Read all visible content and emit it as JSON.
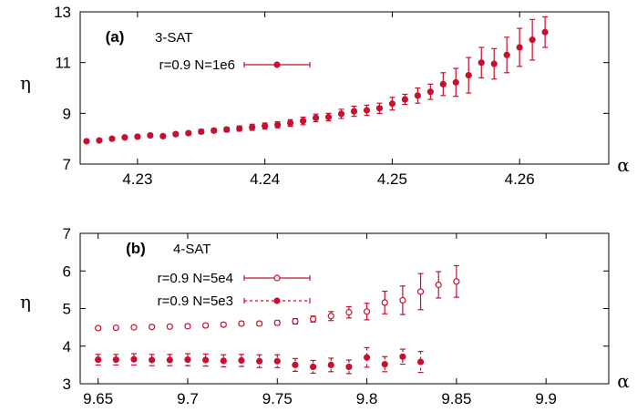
{
  "colors": {
    "series": "#c8102e",
    "axis": "#000000"
  },
  "chart_data": [
    {
      "type": "scatter",
      "panel_label": "(a)",
      "title": "3-SAT",
      "xlabel": "α",
      "ylabel": "η",
      "xlim": [
        4.2255,
        4.267
      ],
      "ylim": [
        7,
        13
      ],
      "xticks": [
        4.23,
        4.24,
        4.25,
        4.26
      ],
      "xtick_labels": [
        "4.23",
        "4.24",
        "4.25",
        "4.26"
      ],
      "yticks": [
        7,
        9,
        11,
        13
      ],
      "ytick_labels": [
        "7",
        "9",
        "11",
        "13"
      ],
      "legend_position": "top-left",
      "grid": false,
      "series": [
        {
          "name": "r=0.9 N=1e6",
          "marker": "filled-circle",
          "line": "solid",
          "x": [
            4.226,
            4.227,
            4.228,
            4.229,
            4.23,
            4.231,
            4.232,
            4.233,
            4.234,
            4.235,
            4.236,
            4.237,
            4.238,
            4.239,
            4.24,
            4.241,
            4.242,
            4.243,
            4.244,
            4.245,
            4.246,
            4.247,
            4.248,
            4.249,
            4.25,
            4.251,
            4.252,
            4.253,
            4.254,
            4.255,
            4.256,
            4.257,
            4.258,
            4.259,
            4.26,
            4.261,
            4.262
          ],
          "y": [
            7.9,
            7.93,
            8.0,
            8.05,
            8.08,
            8.13,
            8.1,
            8.18,
            8.22,
            8.28,
            8.32,
            8.36,
            8.4,
            8.45,
            8.5,
            8.55,
            8.62,
            8.7,
            8.82,
            8.85,
            8.98,
            9.08,
            9.12,
            9.2,
            9.38,
            9.55,
            9.7,
            9.85,
            10.15,
            10.22,
            10.5,
            11.0,
            10.95,
            11.3,
            11.6,
            11.9,
            12.2
          ],
          "err": [
            0.05,
            0.05,
            0.05,
            0.05,
            0.06,
            0.06,
            0.06,
            0.07,
            0.07,
            0.08,
            0.08,
            0.09,
            0.1,
            0.12,
            0.12,
            0.12,
            0.13,
            0.15,
            0.15,
            0.15,
            0.18,
            0.2,
            0.2,
            0.2,
            0.25,
            0.2,
            0.3,
            0.3,
            0.45,
            0.55,
            0.7,
            0.6,
            0.6,
            0.7,
            0.75,
            0.8,
            0.6
          ]
        }
      ]
    },
    {
      "type": "scatter",
      "panel_label": "(b)",
      "title": "4-SAT",
      "xlabel": "α",
      "ylabel": "η",
      "xlim": [
        9.64,
        9.935
      ],
      "ylim": [
        3,
        7
      ],
      "xticks": [
        9.65,
        9.7,
        9.75,
        9.8,
        9.85,
        9.9
      ],
      "xtick_labels": [
        "9.65",
        "9.7",
        "9.75",
        "9.8",
        "9.85",
        "9.9"
      ],
      "yticks": [
        3,
        4,
        5,
        6,
        7
      ],
      "ytick_labels": [
        "3",
        "4",
        "5",
        "6",
        "7"
      ],
      "legend_position": "top-left",
      "grid": false,
      "series": [
        {
          "name": "r=0.9 N=5e4",
          "marker": "open-circle",
          "line": "solid",
          "x": [
            9.65,
            9.66,
            9.67,
            9.68,
            9.69,
            9.7,
            9.71,
            9.72,
            9.73,
            9.74,
            9.75,
            9.76,
            9.77,
            9.78,
            9.79,
            9.8,
            9.81,
            9.82,
            9.83,
            9.84,
            9.85
          ],
          "y": [
            4.48,
            4.49,
            4.5,
            4.51,
            4.52,
            4.53,
            4.55,
            4.57,
            4.6,
            4.6,
            4.62,
            4.66,
            4.72,
            4.8,
            4.9,
            4.92,
            5.16,
            5.22,
            5.45,
            5.63,
            5.72
          ],
          "err": [
            0.04,
            0.04,
            0.04,
            0.04,
            0.04,
            0.05,
            0.05,
            0.05,
            0.05,
            0.05,
            0.06,
            0.07,
            0.08,
            0.12,
            0.15,
            0.22,
            0.3,
            0.38,
            0.48,
            0.35,
            0.42
          ]
        },
        {
          "name": "r=0.9 N=5e3",
          "marker": "filled-circle",
          "line": "dashed",
          "x": [
            9.65,
            9.66,
            9.67,
            9.68,
            9.69,
            9.7,
            9.71,
            9.72,
            9.73,
            9.74,
            9.75,
            9.76,
            9.77,
            9.78,
            9.79,
            9.8,
            9.81,
            9.82,
            9.83
          ],
          "y": [
            3.64,
            3.64,
            3.65,
            3.63,
            3.63,
            3.64,
            3.63,
            3.61,
            3.62,
            3.6,
            3.6,
            3.5,
            3.45,
            3.5,
            3.45,
            3.7,
            3.52,
            3.72,
            3.58
          ],
          "err": [
            0.14,
            0.14,
            0.15,
            0.15,
            0.15,
            0.16,
            0.16,
            0.16,
            0.16,
            0.17,
            0.17,
            0.17,
            0.17,
            0.18,
            0.18,
            0.26,
            0.2,
            0.2,
            0.28
          ]
        }
      ]
    }
  ]
}
